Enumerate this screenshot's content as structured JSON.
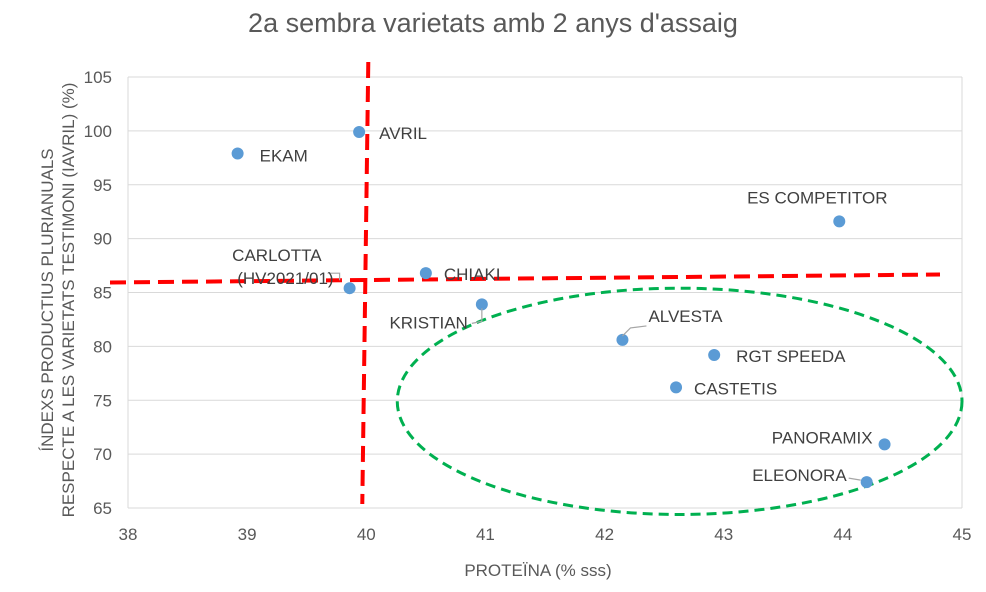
{
  "chart_data": {
    "type": "scatter",
    "title": "2a sembra varietats amb 2 anys d'assaig",
    "xlabel": "PROTEÏNA (% sss)",
    "ylabel_lines": [
      "ÍNDEXS PRODUCTIUS PLURIANUALS",
      "RESPECTE A LES VARIETATS TESTIMONI (IAVRIL) (%)"
    ],
    "xlim": [
      38,
      45
    ],
    "ylim": [
      65,
      105
    ],
    "x_ticks": [
      "38",
      "39",
      "40",
      "41",
      "42",
      "43",
      "44",
      "45"
    ],
    "y_ticks": [
      "65",
      "70",
      "75",
      "80",
      "85",
      "90",
      "95",
      "100",
      "105"
    ],
    "grid": "horizontal",
    "marker_color": "#5B9BD5",
    "points": [
      {
        "label": "EKAM",
        "x": 38.92,
        "y": 97.9
      },
      {
        "label": "AVRIL",
        "x": 39.94,
        "y": 99.9
      },
      {
        "label": "CARLOTTA (HV2021/01)",
        "x": 39.86,
        "y": 85.4
      },
      {
        "label": "CHIAKI",
        "x": 40.5,
        "y": 86.8
      },
      {
        "label": "KRISTIAN",
        "x": 40.97,
        "y": 83.9
      },
      {
        "label": "ALVESTA",
        "x": 42.15,
        "y": 80.6
      },
      {
        "label": "CASTETIS",
        "x": 42.6,
        "y": 76.2
      },
      {
        "label": "RGT SPEEDA",
        "x": 42.92,
        "y": 79.2
      },
      {
        "label": "ES COMPETITOR",
        "x": 43.97,
        "y": 91.6
      },
      {
        "label": "PANORAMIX",
        "x": 44.35,
        "y": 70.9
      },
      {
        "label": "ELEONORA",
        "x": 44.2,
        "y": 67.4
      }
    ],
    "reference_lines": {
      "vertical_x": 40.0,
      "horizontal_y": 86.3,
      "color": "#FF0000",
      "style": "dashed"
    },
    "highlight_ellipse": {
      "center_x": 42.63,
      "center_y": 74.9,
      "radius_x": 2.37,
      "radius_y": 10.5,
      "color": "#00B050",
      "style": "dashed"
    }
  }
}
